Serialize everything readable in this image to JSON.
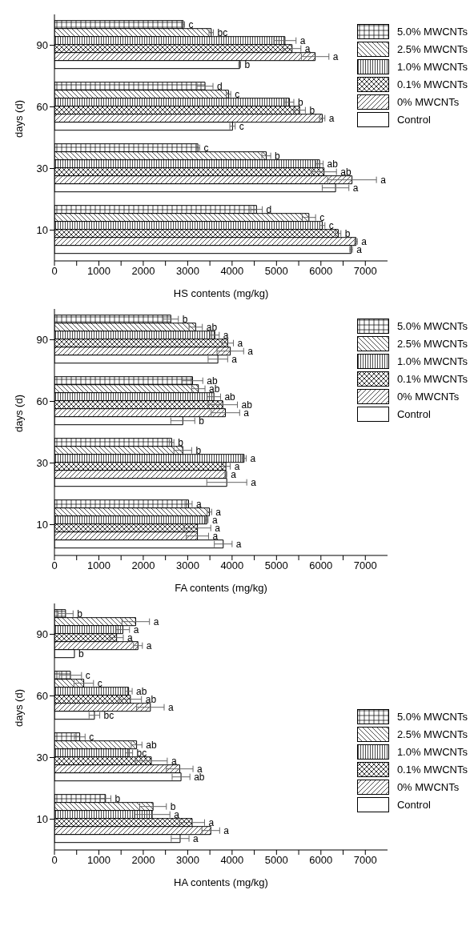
{
  "chart_data": [
    {
      "type": "bar",
      "orientation": "horizontal",
      "categories": [
        "90",
        "60",
        "30",
        "10"
      ],
      "xlabel": "HS contents (mg/kg)",
      "ylabel": "days (d)",
      "xlim": [
        0,
        7500
      ],
      "xticks": [
        0,
        {
          "value": 500,
          "label": null
        },
        1000,
        {
          "value": 1500,
          "label": null
        },
        2000,
        {
          "value": 2500,
          "label": null
        },
        3000,
        {
          "value": 3500,
          "label": null
        },
        4000,
        {
          "value": 4500,
          "label": null
        },
        5000,
        {
          "value": 5500,
          "label": null
        },
        6000,
        {
          "value": 6500,
          "label": null
        },
        7000
      ],
      "legend": "top right",
      "series": [
        {
          "name": "5.0% MWCNTs",
          "color": "#000000",
          "values": [
            2900,
            3390,
            3230,
            4550
          ],
          "errors": [
            30,
            180,
            40,
            130
          ],
          "value_labels": [
            "c",
            "d",
            "c",
            "d"
          ]
        },
        {
          "name": "2.5% MWCNTs",
          "color": "#000000",
          "values": [
            3530,
            3920,
            4770,
            5730
          ],
          "errors": [
            50,
            50,
            100,
            150
          ],
          "value_labels": [
            "bc",
            "c",
            "b",
            "c"
          ]
        },
        {
          "name": "1.0% MWCNTs",
          "color": "#000000",
          "values": [
            5190,
            5290,
            5970,
            6030
          ],
          "errors": [
            250,
            100,
            80,
            60
          ],
          "value_labels": [
            "a",
            "b",
            "ab",
            "c"
          ]
        },
        {
          "name": "0.1% MWCNTs",
          "color": "#000000",
          "values": [
            5350,
            5520,
            6070,
            6390
          ],
          "errors": [
            200,
            130,
            280,
            60
          ],
          "value_labels": [
            "a",
            "b",
            "ab",
            "b"
          ]
        },
        {
          "name": "0% MWCNTs",
          "color": "#000000",
          "values": [
            5870,
            6030,
            6700,
            6790
          ],
          "errors": [
            310,
            60,
            550,
            30
          ],
          "value_labels": [
            "a",
            "a",
            "a",
            "a"
          ]
        },
        {
          "name": "Control",
          "color": "#000000",
          "values": [
            4170,
            4010,
            6330,
            6680
          ],
          "errors": [
            20,
            60,
            300,
            30
          ],
          "value_labels": [
            "b",
            "c",
            "a",
            "a"
          ]
        }
      ]
    },
    {
      "type": "bar",
      "orientation": "horizontal",
      "categories": [
        "90",
        "60",
        "30",
        "10"
      ],
      "xlabel": "FA contents (mg/kg)",
      "ylabel": "days (d)",
      "xlim": [
        0,
        7500
      ],
      "xticks": [
        0,
        {
          "value": 500,
          "label": null
        },
        1000,
        {
          "value": 1500,
          "label": null
        },
        2000,
        {
          "value": 2500,
          "label": null
        },
        3000,
        {
          "value": 3500,
          "label": null
        },
        4000,
        {
          "value": 4500,
          "label": null
        },
        5000,
        {
          "value": 5500,
          "label": null
        },
        6000,
        {
          "value": 6500,
          "label": null
        },
        7000
      ],
      "legend": "top right",
      "series": [
        {
          "name": "5.0% MWCNTs",
          "color": "#000000",
          "values": [
            2620,
            3110,
            2640,
            3020
          ],
          "errors": [
            170,
            230,
            50,
            80
          ],
          "value_labels": [
            "b",
            "ab",
            "b",
            "a"
          ]
        },
        {
          "name": "2.5% MWCNTs",
          "color": "#000000",
          "values": [
            3180,
            3240,
            2890,
            3490
          ],
          "errors": [
            150,
            150,
            200,
            50
          ],
          "value_labels": [
            "ab",
            "ab",
            "b",
            "a"
          ]
        },
        {
          "name": "1.0% MWCNTs",
          "color": "#000000",
          "values": [
            3610,
            3590,
            4270,
            3430
          ],
          "errors": [
            100,
            150,
            50,
            30
          ],
          "value_labels": [
            "a",
            "ab",
            "a",
            "a"
          ]
        },
        {
          "name": "0.1% MWCNTs",
          "color": "#000000",
          "values": [
            3900,
            3790,
            3860,
            3220
          ],
          "errors": [
            130,
            330,
            100,
            300
          ],
          "value_labels": [
            "a",
            "ab",
            "a",
            "a"
          ]
        },
        {
          "name": "0% MWCNTs",
          "color": "#000000",
          "values": [
            3960,
            3850,
            3860,
            3220
          ],
          "errors": [
            300,
            320,
            20,
            250
          ],
          "value_labels": [
            "a",
            "a",
            "a",
            "a"
          ]
        },
        {
          "name": "Control",
          "color": "#000000",
          "values": [
            3680,
            2890,
            3880,
            3800
          ],
          "errors": [
            220,
            270,
            450,
            200
          ],
          "value_labels": [
            "a",
            "b",
            "a",
            "a"
          ]
        }
      ]
    },
    {
      "type": "bar",
      "orientation": "horizontal",
      "categories": [
        "90",
        "60",
        "30",
        "10"
      ],
      "xlabel": "HA contents (mg/kg)",
      "ylabel": "days (d)",
      "xlim": [
        0,
        7500
      ],
      "xticks": [
        0,
        {
          "value": 500,
          "label": null
        },
        1000,
        {
          "value": 1500,
          "label": null
        },
        2000,
        {
          "value": 2500,
          "label": null
        },
        3000,
        {
          "value": 3500,
          "label": null
        },
        4000,
        {
          "value": 4500,
          "label": null
        },
        5000,
        {
          "value": 5500,
          "label": null
        },
        6000,
        {
          "value": 6500,
          "label": null
        },
        7000
      ],
      "legend": "right",
      "series": [
        {
          "name": "5.0% MWCNTs",
          "color": "#000000",
          "values": [
            250,
            360,
            570,
            1150
          ],
          "errors": [
            170,
            250,
            120,
            120
          ],
          "value_labels": [
            "b",
            "c",
            "c",
            "b"
          ]
        },
        {
          "name": "2.5% MWCNTs",
          "color": "#000000",
          "values": [
            1830,
            660,
            1850,
            2220
          ],
          "errors": [
            310,
            220,
            120,
            300
          ],
          "value_labels": [
            "a",
            "c",
            "ab",
            "b"
          ]
        },
        {
          "name": "1.0% MWCNTs",
          "color": "#000000",
          "values": [
            1540,
            1670,
            1680,
            2200
          ],
          "errors": [
            150,
            80,
            80,
            400
          ],
          "value_labels": [
            "a",
            "ab",
            "bc",
            "a"
          ]
        },
        {
          "name": "0.1% MWCNTs",
          "color": "#000000",
          "values": [
            1400,
            1710,
            2180,
            3100
          ],
          "errors": [
            150,
            250,
            360,
            280
          ],
          "value_labels": [
            "a",
            "ab",
            "a",
            "a"
          ]
        },
        {
          "name": "0% MWCNTs",
          "color": "#000000",
          "values": [
            1880,
            2160,
            2820,
            3520
          ],
          "errors": [
            100,
            310,
            300,
            200
          ],
          "value_labels": [
            "a",
            "a",
            "a",
            "a"
          ]
        },
        {
          "name": "Control",
          "color": "#000000",
          "values": [
            450,
            900,
            2850,
            2830
          ],
          "errors": [
            null,
            120,
            200,
            200
          ],
          "value_labels": [
            "b",
            "bc",
            "ab",
            "a"
          ]
        }
      ]
    }
  ]
}
